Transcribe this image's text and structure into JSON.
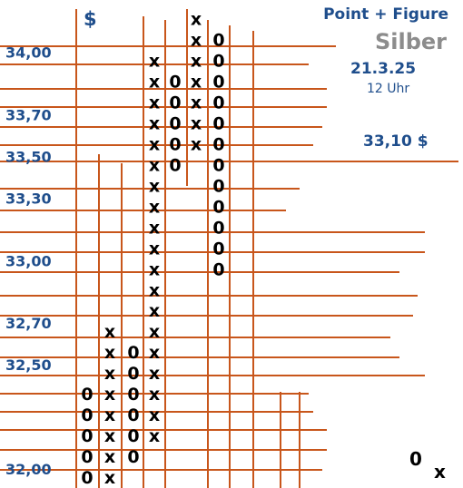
{
  "header": {
    "currency": "$",
    "title": "Point + Figure",
    "subtitle": "Silber",
    "date": "21.3.25",
    "time": "12 Uhr",
    "price": "33,10 $"
  },
  "legend": {
    "o_label": "0",
    "x_label": "x"
  },
  "colors": {
    "grid": "#c8561b",
    "label": "#1f4e8c",
    "subtitle": "#8c8c8c",
    "mark": "#000000"
  },
  "chart_data": {
    "type": "point-and-figure",
    "title": "Point + Figure",
    "subtitle": "Silber",
    "box_size": 0.1,
    "ylim": [
      31.9,
      34.4
    ],
    "y_tick_labels": [
      "34,00",
      "33,70",
      "33,50",
      "33,30",
      "33,00",
      "32,70",
      "32,50",
      "32,00"
    ],
    "y_tick_values": [
      34.0,
      33.7,
      33.5,
      33.3,
      33.0,
      32.7,
      32.5,
      32.0
    ],
    "columns": [
      {
        "type": "O",
        "high": 32.4,
        "low": 31.9
      },
      {
        "type": "X",
        "high": 32.7,
        "low": 31.9
      },
      {
        "type": "O",
        "high": 32.6,
        "low": 32.1
      },
      {
        "type": "X",
        "high": 34.0,
        "low": 32.2
      },
      {
        "type": "O",
        "high": 33.9,
        "low": 33.5
      },
      {
        "type": "X",
        "high": 34.2,
        "low": 33.6
      },
      {
        "type": "O",
        "high": 34.1,
        "low": 33.0
      }
    ]
  }
}
